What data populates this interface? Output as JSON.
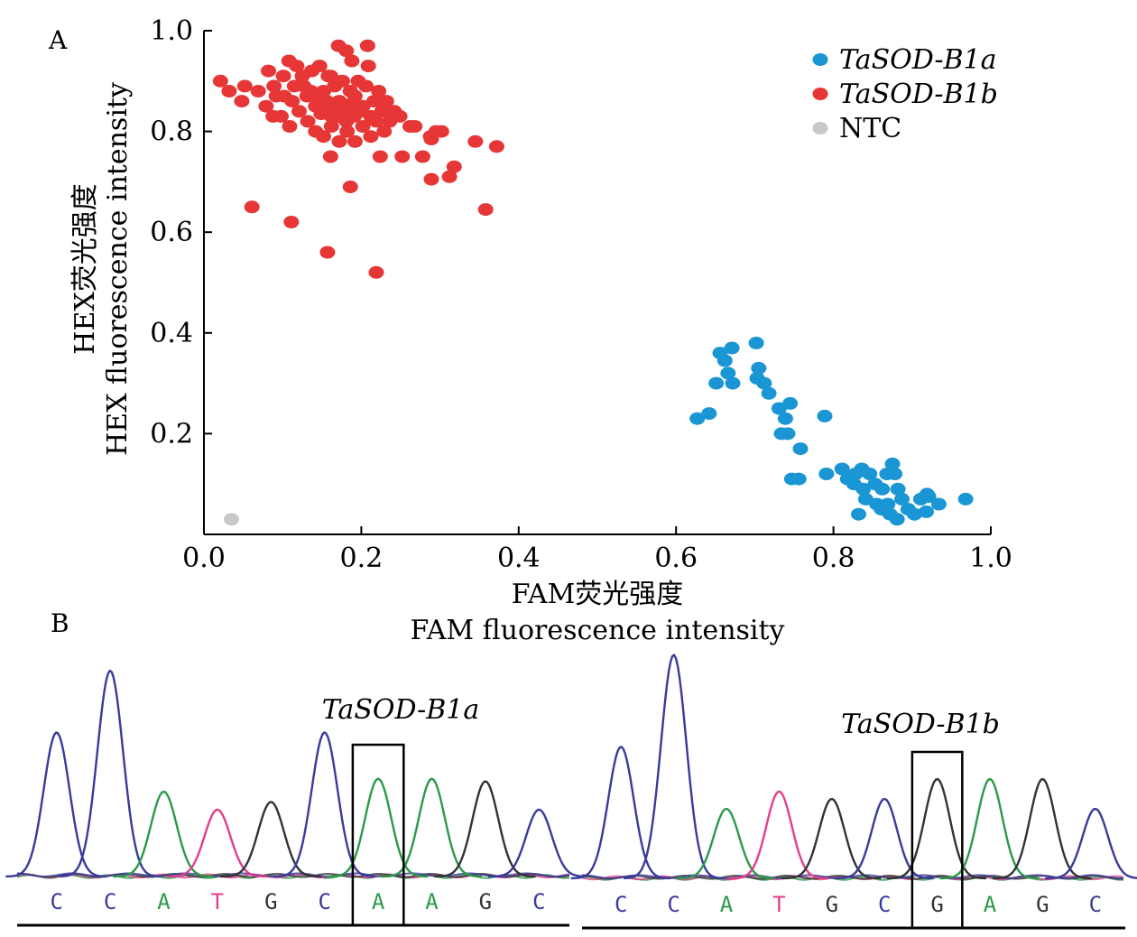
{
  "panel_labels": {
    "a": "A",
    "b": "B"
  },
  "colors": {
    "allele_a": "#1a96d4",
    "allele_b": "#e63636",
    "ntc": "#c8c8c8",
    "trace_C": "#3a3a9c",
    "trace_A": "#2a9a48",
    "trace_T": "#e0408a",
    "trace_G": "#333333"
  },
  "chart_data": [
    {
      "type": "scatter",
      "panel": "A",
      "title": "",
      "xlabel_cn": "FAM荧光强度",
      "xlabel_en": "FAM fluorescence intensity",
      "ylabel_cn": "HEX荧光强度",
      "ylabel_en": "HEX fluorescence intensity",
      "xlim": [
        0.0,
        1.0
      ],
      "ylim": [
        0.0,
        1.0
      ],
      "xticks": [
        "0.0",
        "0.2",
        "0.4",
        "0.6",
        "0.8",
        "1.0"
      ],
      "yticks": [
        "0.2",
        "0.4",
        "0.6",
        "0.8",
        "1.0"
      ],
      "grid": false,
      "legend_position": "top-right",
      "series": [
        {
          "name": "TaSOD-B1a",
          "color": "#1a96d4",
          "points": [
            [
              0.627,
              0.23
            ],
            [
              0.642,
              0.24
            ],
            [
              0.656,
              0.36
            ],
            [
              0.671,
              0.37
            ],
            [
              0.662,
              0.345
            ],
            [
              0.666,
              0.32
            ],
            [
              0.651,
              0.3
            ],
            [
              0.672,
              0.3
            ],
            [
              0.702,
              0.38
            ],
            [
              0.705,
              0.33
            ],
            [
              0.703,
              0.31
            ],
            [
              0.712,
              0.3
            ],
            [
              0.718,
              0.28
            ],
            [
              0.731,
              0.25
            ],
            [
              0.739,
              0.23
            ],
            [
              0.745,
              0.26
            ],
            [
              0.734,
              0.2
            ],
            [
              0.742,
              0.2
            ],
            [
              0.758,
              0.17
            ],
            [
              0.747,
              0.11
            ],
            [
              0.756,
              0.11
            ],
            [
              0.789,
              0.235
            ],
            [
              0.791,
              0.12
            ],
            [
              0.811,
              0.13
            ],
            [
              0.818,
              0.11
            ],
            [
              0.828,
              0.12
            ],
            [
              0.836,
              0.13
            ],
            [
              0.846,
              0.12
            ],
            [
              0.826,
              0.1
            ],
            [
              0.838,
              0.09
            ],
            [
              0.841,
              0.07
            ],
            [
              0.853,
              0.1
            ],
            [
              0.862,
              0.09
            ],
            [
              0.868,
              0.12
            ],
            [
              0.875,
              0.14
            ],
            [
              0.878,
              0.12
            ],
            [
              0.832,
              0.04
            ],
            [
              0.861,
              0.05
            ],
            [
              0.869,
              0.06
            ],
            [
              0.872,
              0.04
            ],
            [
              0.881,
              0.03
            ],
            [
              0.887,
              0.07
            ],
            [
              0.895,
              0.05
            ],
            [
              0.903,
              0.04
            ],
            [
              0.911,
              0.07
            ],
            [
              0.919,
              0.08
            ],
            [
              0.918,
              0.045
            ],
            [
              0.921,
              0.075
            ],
            [
              0.934,
              0.06
            ],
            [
              0.968,
              0.07
            ],
            [
              0.855,
              0.06
            ],
            [
              0.882,
              0.09
            ]
          ]
        },
        {
          "name": "TaSOD-B1b",
          "color": "#e63636",
          "points": [
            [
              0.021,
              0.9
            ],
            [
              0.032,
              0.88
            ],
            [
              0.048,
              0.86
            ],
            [
              0.052,
              0.89
            ],
            [
              0.069,
              0.88
            ],
            [
              0.082,
              0.92
            ],
            [
              0.089,
              0.89
            ],
            [
              0.092,
              0.87
            ],
            [
              0.101,
              0.91
            ],
            [
              0.112,
              0.86
            ],
            [
              0.108,
              0.94
            ],
            [
              0.118,
              0.93
            ],
            [
              0.127,
              0.89
            ],
            [
              0.137,
              0.92
            ],
            [
              0.147,
              0.93
            ],
            [
              0.158,
              0.91
            ],
            [
              0.171,
              0.97
            ],
            [
              0.181,
              0.96
            ],
            [
              0.188,
              0.94
            ],
            [
              0.208,
              0.97
            ],
            [
              0.209,
              0.93
            ],
            [
              0.131,
              0.87
            ],
            [
              0.142,
              0.85
            ],
            [
              0.152,
              0.88
            ],
            [
              0.162,
              0.83
            ],
            [
              0.172,
              0.86
            ],
            [
              0.182,
              0.84
            ],
            [
              0.192,
              0.87
            ],
            [
              0.202,
              0.85
            ],
            [
              0.212,
              0.83
            ],
            [
              0.222,
              0.88
            ],
            [
              0.232,
              0.86
            ],
            [
              0.242,
              0.84
            ],
            [
              0.098,
              0.83
            ],
            [
              0.109,
              0.81
            ],
            [
              0.121,
              0.84
            ],
            [
              0.132,
              0.82
            ],
            [
              0.142,
              0.8
            ],
            [
              0.152,
              0.79
            ],
            [
              0.162,
              0.81
            ],
            [
              0.172,
              0.78
            ],
            [
              0.182,
              0.8
            ],
            [
              0.192,
              0.78
            ],
            [
              0.202,
              0.81
            ],
            [
              0.212,
              0.79
            ],
            [
              0.079,
              0.85
            ],
            [
              0.088,
              0.83
            ],
            [
              0.102,
              0.87
            ],
            [
              0.115,
              0.89
            ],
            [
              0.125,
              0.91
            ],
            [
              0.136,
              0.88
            ],
            [
              0.146,
              0.87
            ],
            [
              0.156,
              0.86
            ],
            [
              0.166,
              0.89
            ],
            [
              0.176,
              0.9
            ],
            [
              0.186,
              0.88
            ],
            [
              0.196,
              0.9
            ],
            [
              0.206,
              0.89
            ],
            [
              0.216,
              0.86
            ],
            [
              0.226,
              0.84
            ],
            [
              0.236,
              0.82
            ],
            [
              0.161,
              0.91
            ],
            [
              0.191,
              0.83
            ],
            [
              0.171,
              0.83
            ],
            [
              0.181,
              0.82
            ],
            [
              0.158,
              0.845
            ],
            [
              0.168,
              0.855
            ],
            [
              0.178,
              0.845
            ],
            [
              0.188,
              0.855
            ],
            [
              0.149,
              0.835
            ],
            [
              0.199,
              0.84
            ],
            [
              0.219,
              0.82
            ],
            [
              0.229,
              0.8
            ],
            [
              0.249,
              0.83
            ],
            [
              0.262,
              0.81
            ],
            [
              0.288,
              0.79
            ],
            [
              0.295,
              0.8
            ],
            [
              0.289,
              0.785
            ],
            [
              0.278,
              0.75
            ],
            [
              0.302,
              0.8
            ],
            [
              0.268,
              0.81
            ],
            [
              0.252,
              0.75
            ],
            [
              0.312,
              0.71
            ],
            [
              0.318,
              0.73
            ],
            [
              0.345,
              0.78
            ],
            [
              0.372,
              0.77
            ],
            [
              0.224,
              0.75
            ],
            [
              0.161,
              0.75
            ],
            [
              0.186,
              0.69
            ],
            [
              0.061,
              0.65
            ],
            [
              0.111,
              0.62
            ],
            [
              0.157,
              0.56
            ],
            [
              0.358,
              0.645
            ],
            [
              0.219,
              0.52
            ],
            [
              0.289,
              0.705
            ]
          ]
        },
        {
          "name": "NTC",
          "color": "#c8c8c8",
          "points": [
            [
              0.035,
              0.03
            ]
          ]
        }
      ]
    },
    {
      "type": "line",
      "panel": "B",
      "label": "TaSOD-B1a",
      "bases": [
        "C",
        "C",
        "A",
        "T",
        "G",
        "C",
        "A",
        "A",
        "G",
        "C"
      ],
      "highlight_index": 6,
      "peak_heights": [
        0.56,
        0.8,
        0.33,
        0.26,
        0.29,
        0.56,
        0.38,
        0.38,
        0.37,
        0.26
      ]
    },
    {
      "type": "line",
      "panel": "B",
      "label": "TaSOD-B1b",
      "bases": [
        "C",
        "C",
        "A",
        "T",
        "G",
        "C",
        "G",
        "A",
        "G",
        "C"
      ],
      "highlight_index": 6,
      "peak_heights": [
        0.53,
        0.9,
        0.28,
        0.35,
        0.32,
        0.32,
        0.4,
        0.4,
        0.4,
        0.28
      ]
    }
  ]
}
